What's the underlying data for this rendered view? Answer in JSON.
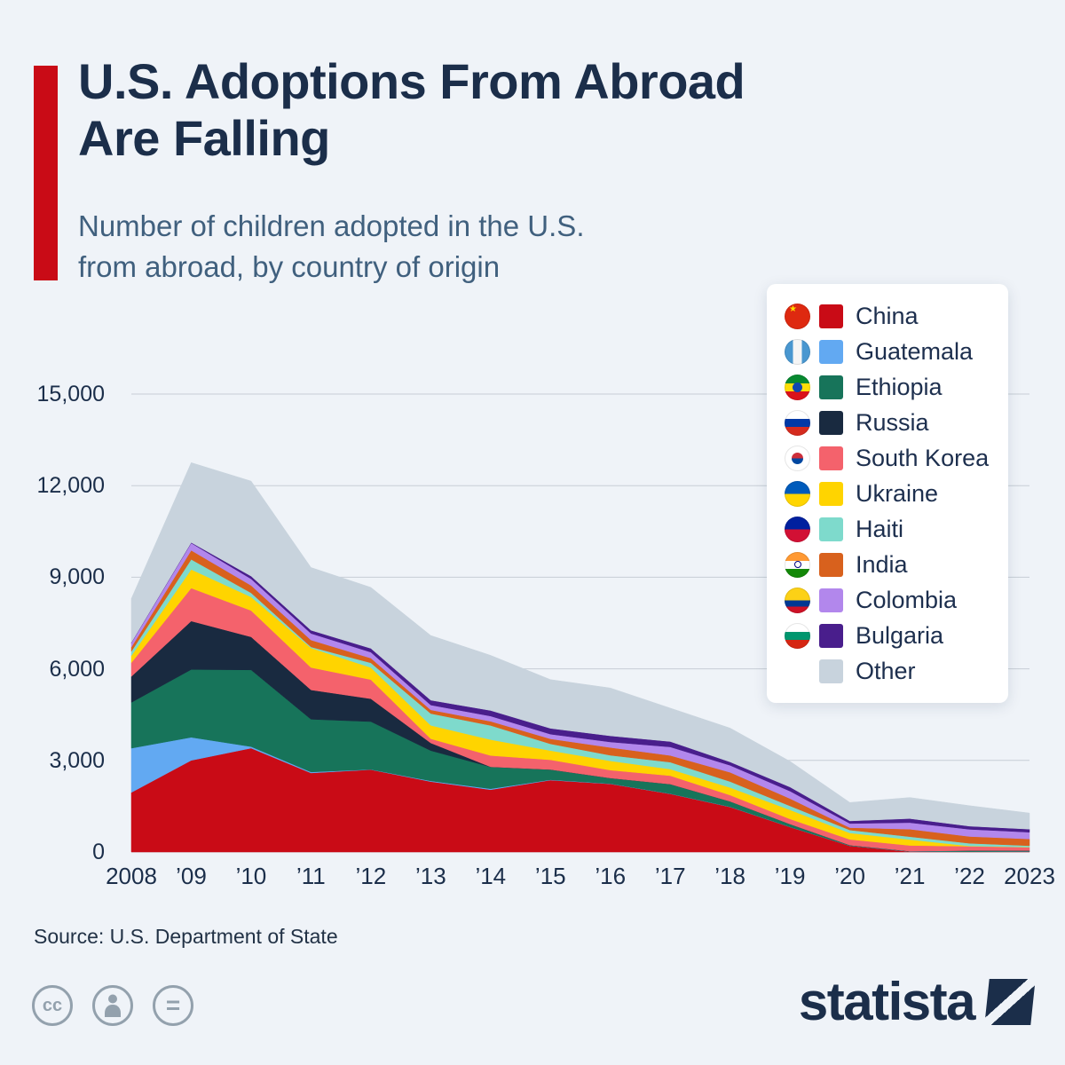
{
  "header": {
    "title_line1": "U.S. Adoptions From Abroad",
    "title_line2": "Are Falling",
    "subtitle_line1": "Number of children adopted in the U.S.",
    "subtitle_line2": "from abroad, by country of origin"
  },
  "source": "Source: U.S. Department of State",
  "branding": {
    "logo_text": "statista"
  },
  "footer_icons": {
    "cc_label": "cc",
    "equals_label": "="
  },
  "colors": {
    "background": "#eff3f8",
    "accent_red": "#c90b16",
    "title": "#1b2e4a",
    "subtitle": "#40607e",
    "gridline": "#c7ced6",
    "axis_label": "#1b2e4a",
    "legend_bg": "#ffffff"
  },
  "chart_data": {
    "type": "area",
    "stacked": true,
    "title": "Number of children adopted in the U.S. from abroad, by country of origin",
    "grid": true,
    "legend_position": "top-right",
    "x": [
      2008,
      2009,
      2010,
      2011,
      2012,
      2013,
      2014,
      2015,
      2016,
      2017,
      2018,
      2019,
      2020,
      2021,
      2022,
      2023
    ],
    "x_tick_labels": [
      "2008",
      "’09",
      "’10",
      "’11",
      "’12",
      "’13",
      "’14",
      "’15",
      "’16",
      "’17",
      "’18",
      "’19",
      "’20",
      "’21",
      "’22",
      "2023"
    ],
    "y_ticks": [
      0,
      3000,
      6000,
      9000,
      12000,
      15000
    ],
    "y_tick_labels": [
      "0",
      "3,000",
      "6,000",
      "9,000",
      "12,000",
      "15,000"
    ],
    "ylim": [
      0,
      15000
    ],
    "totals": [
      8300,
      12753,
      12149,
      9319,
      8668,
      7092,
      6441,
      5647,
      5372,
      4714,
      4059,
      2971,
      1622,
      1785,
      1517,
      1275
    ],
    "series": [
      {
        "name": "China",
        "flag": "flag-china",
        "color": "#c90b16",
        "values": [
          1950,
          3001,
          3401,
          2589,
          2697,
          2306,
          2040,
          2354,
          2231,
          1905,
          1475,
          819,
          202,
          14,
          8,
          16
        ]
      },
      {
        "name": "Guatemala",
        "flag": "flag-guatemala",
        "color": "#62a9f2",
        "values": [
          1450,
          756,
          51,
          32,
          7,
          23,
          32,
          13,
          8,
          6,
          6,
          4,
          2,
          3,
          3,
          2
        ]
      },
      {
        "name": "Ethiopia",
        "flag": "flag-ethiopia",
        "color": "#17745a",
        "values": [
          1500,
          2221,
          2513,
          1727,
          1568,
          993,
          716,
          335,
          183,
          313,
          177,
          93,
          20,
          10,
          35,
          28
        ]
      },
      {
        "name": "Russia",
        "flag": "flag-russia",
        "color": "#192a40",
        "values": [
          850,
          1586,
          1082,
          962,
          748,
          250,
          2,
          0,
          0,
          0,
          0,
          0,
          0,
          0,
          0,
          0
        ]
      },
      {
        "name": "South Korea",
        "flag": "flag-south-korea",
        "color": "#f4626c",
        "values": [
          450,
          1080,
          863,
          734,
          627,
          138,
          370,
          318,
          260,
          276,
          206,
          166,
          188,
          188,
          141,
          108
        ]
      },
      {
        "name": "Ukraine",
        "flag": "flag-ukraine",
        "color": "#ffd400",
        "values": [
          230,
          610,
          445,
          640,
          395,
          438,
          521,
          303,
          303,
          215,
          248,
          298,
          211,
          192,
          10,
          5
        ]
      },
      {
        "name": "Haiti",
        "flag": "flag-haiti",
        "color": "#7edacc",
        "values": [
          140,
          330,
          133,
          33,
          154,
          388,
          464,
          219,
          183,
          227,
          196,
          130,
          96,
          96,
          88,
          47
        ]
      },
      {
        "name": "India",
        "flag": "flag-india",
        "color": "#d8611d",
        "values": [
          140,
          297,
          243,
          226,
          154,
          119,
          136,
          165,
          255,
          221,
          302,
          241,
          78,
          245,
          223,
          221
        ]
      },
      {
        "name": "Colombia",
        "flag": "flag-colombia",
        "color": "#b287ec",
        "values": [
          140,
          238,
          216,
          216,
          195,
          159,
          172,
          153,
          181,
          279,
          229,
          244,
          137,
          214,
          235,
          221
        ]
      },
      {
        "name": "Bulgaria",
        "flag": "flag-bulgaria",
        "color": "#491e8c",
        "values": [
          15,
          20,
          90,
          105,
          125,
          159,
          183,
          190,
          201,
          178,
          111,
          134,
          85,
          133,
          103,
          100
        ]
      },
      {
        "name": "Other",
        "flag": null,
        "color": "#c8d3dd",
        "values": [
          1435,
          2614,
          3112,
          2055,
          1998,
          2119,
          1805,
          1597,
          1567,
          1094,
          1109,
          842,
          603,
          690,
          671,
          527
        ]
      }
    ]
  }
}
